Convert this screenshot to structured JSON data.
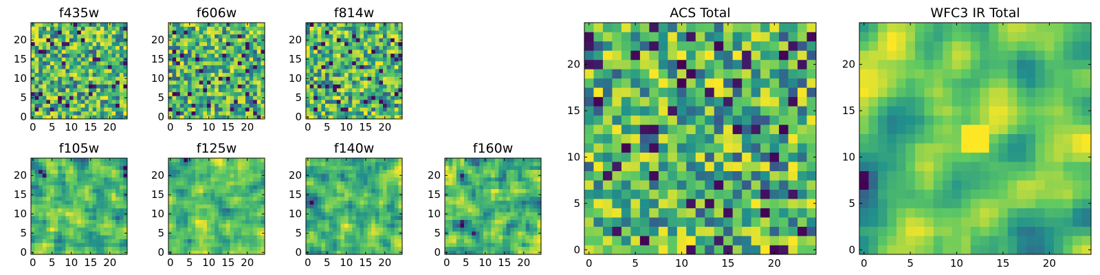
{
  "chart_data": [
    {
      "type": "heatmap",
      "title": "f435w",
      "grid": [
        25,
        25
      ],
      "xlim": [
        -0.5,
        24.5
      ],
      "ylim": [
        -0.5,
        24.5
      ],
      "xticks": [
        0,
        5,
        10,
        15,
        20
      ],
      "yticks": [
        0,
        5,
        10,
        15,
        20
      ],
      "texture": "pixel noise",
      "seed": 11,
      "smooth": 0
    },
    {
      "type": "heatmap",
      "title": "f606w",
      "grid": [
        25,
        25
      ],
      "xlim": [
        -0.5,
        24.5
      ],
      "ylim": [
        -0.5,
        24.5
      ],
      "xticks": [
        0,
        5,
        10,
        15,
        20
      ],
      "yticks": [
        0,
        5,
        10,
        15,
        20
      ],
      "texture": "pixel noise",
      "seed": 23,
      "smooth": 0
    },
    {
      "type": "heatmap",
      "title": "f814w",
      "grid": [
        25,
        25
      ],
      "xlim": [
        -0.5,
        24.5
      ],
      "ylim": [
        -0.5,
        24.5
      ],
      "xticks": [
        0,
        5,
        10,
        15,
        20
      ],
      "yticks": [
        0,
        5,
        10,
        15,
        20
      ],
      "texture": "pixel noise",
      "seed": 37,
      "smooth": 0
    },
    {
      "type": "heatmap",
      "title": "f105w",
      "grid": [
        25,
        25
      ],
      "xlim": [
        -0.5,
        24.5
      ],
      "ylim": [
        -0.5,
        24.5
      ],
      "xticks": [
        0,
        5,
        10,
        15,
        20
      ],
      "yticks": [
        0,
        5,
        10,
        15,
        20
      ],
      "texture": "correlated noise",
      "seed": 41,
      "smooth": 1
    },
    {
      "type": "heatmap",
      "title": "f125w",
      "grid": [
        25,
        25
      ],
      "xlim": [
        -0.5,
        24.5
      ],
      "ylim": [
        -0.5,
        24.5
      ],
      "xticks": [
        0,
        5,
        10,
        15,
        20
      ],
      "yticks": [
        0,
        5,
        10,
        15,
        20
      ],
      "texture": "correlated noise",
      "seed": 53,
      "smooth": 1
    },
    {
      "type": "heatmap",
      "title": "f140w",
      "grid": [
        25,
        25
      ],
      "xlim": [
        -0.5,
        24.5
      ],
      "ylim": [
        -0.5,
        24.5
      ],
      "xticks": [
        0,
        5,
        10,
        15,
        20
      ],
      "yticks": [
        0,
        5,
        10,
        15,
        20
      ],
      "texture": "correlated noise",
      "seed": 67,
      "smooth": 1
    },
    {
      "type": "heatmap",
      "title": "f160w",
      "grid": [
        25,
        25
      ],
      "xlim": [
        -0.5,
        24.5
      ],
      "ylim": [
        -0.5,
        24.5
      ],
      "xticks": [
        0,
        5,
        10,
        15,
        20
      ],
      "yticks": [
        0,
        5,
        10,
        15,
        20
      ],
      "texture": "correlated noise",
      "seed": 79,
      "smooth": 1
    },
    {
      "type": "heatmap",
      "title": "ACS Total",
      "grid": [
        25,
        25
      ],
      "xlim": [
        -0.5,
        24.5
      ],
      "ylim": [
        -0.5,
        24.5
      ],
      "xticks": [
        0,
        5,
        10,
        15,
        20
      ],
      "yticks": [
        0,
        5,
        10,
        15,
        20
      ],
      "texture": "pixel noise",
      "seed": 97,
      "smooth": 0
    },
    {
      "type": "heatmap",
      "title": "WFC3 IR Total",
      "grid": [
        25,
        25
      ],
      "xlim": [
        -0.5,
        24.5
      ],
      "ylim": [
        -0.5,
        24.5
      ],
      "xticks": [
        0,
        5,
        10,
        15,
        20
      ],
      "yticks": [
        0,
        5,
        10,
        15,
        20
      ],
      "texture": "correlated noise",
      "seed": 113,
      "smooth": 2,
      "bright_spot": [
        12,
        12
      ]
    }
  ],
  "colormap": [
    "#440154",
    "#3b528b",
    "#21918c",
    "#5ec962",
    "#fde725"
  ]
}
